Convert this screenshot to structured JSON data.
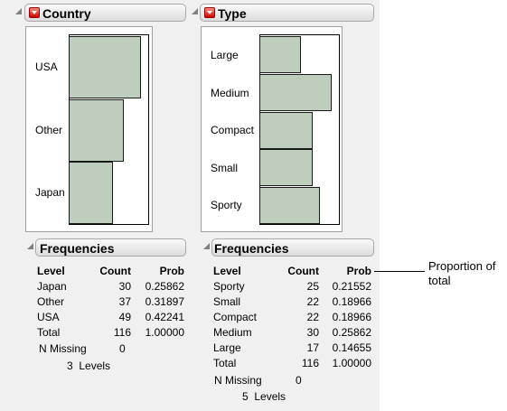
{
  "country": {
    "title": "Country",
    "chart": {
      "type": "bar",
      "orientation": "horizontal",
      "categories": [
        "USA",
        "Other",
        "Japan"
      ],
      "values": [
        49,
        37,
        30
      ]
    },
    "frequencies": {
      "title": "Frequencies",
      "headers": [
        "Level",
        "Count",
        "Prob"
      ],
      "rows": [
        [
          "Japan",
          "30",
          "0.25862"
        ],
        [
          "Other",
          "37",
          "0.31897"
        ],
        [
          "USA",
          "49",
          "0.42241"
        ],
        [
          "Total",
          "116",
          "1.00000"
        ]
      ],
      "n_missing_label": "N Missing",
      "n_missing_value": "0",
      "levels_text": "3  Levels"
    }
  },
  "type": {
    "title": "Type",
    "chart": {
      "type": "bar",
      "orientation": "horizontal",
      "categories": [
        "Large",
        "Medium",
        "Compact",
        "Small",
        "Sporty"
      ],
      "values": [
        17,
        30,
        22,
        22,
        25
      ]
    },
    "frequencies": {
      "title": "Frequencies",
      "headers": [
        "Level",
        "Count",
        "Prob"
      ],
      "rows": [
        [
          "Sporty",
          "25",
          "0.21552"
        ],
        [
          "Small",
          "22",
          "0.18966"
        ],
        [
          "Compact",
          "22",
          "0.18966"
        ],
        [
          "Medium",
          "30",
          "0.25862"
        ],
        [
          "Large",
          "17",
          "0.14655"
        ],
        [
          "Total",
          "116",
          "1.00000"
        ]
      ],
      "n_missing_label": "N Missing",
      "n_missing_value": "0",
      "levels_text": "5  Levels"
    }
  },
  "chart_data": [
    {
      "type": "bar",
      "orientation": "horizontal",
      "title": "Country",
      "categories": [
        "USA",
        "Other",
        "Japan"
      ],
      "values": [
        49,
        37,
        30
      ]
    },
    {
      "type": "bar",
      "orientation": "horizontal",
      "title": "Type",
      "categories": [
        "Large",
        "Medium",
        "Compact",
        "Small",
        "Sporty"
      ],
      "values": [
        17,
        30,
        22,
        22,
        25
      ]
    }
  ],
  "callout": {
    "line1": "Proportion of",
    "line2": "total"
  }
}
